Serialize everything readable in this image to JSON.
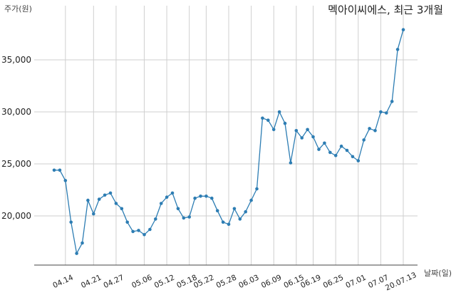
{
  "chart_data": {
    "type": "line",
    "title": "멕아이씨에스, 최근 3개월",
    "ylabel": "주가(원)",
    "xlabel": "날짜(일)",
    "ylim": [
      15000,
      39000
    ],
    "y_ticks": [
      20000,
      25000,
      30000,
      35000
    ],
    "y_tick_labels": [
      "20,000",
      "25,000",
      "30,000",
      "35,000"
    ],
    "grid": true,
    "x_tick_labels": [
      "04.14",
      "04.21",
      "04.27",
      "05.06",
      "05.12",
      "05.18",
      "05.22",
      "05.28",
      "06.03",
      "06.09",
      "06.15",
      "06.19",
      "06.25",
      "07.01",
      "07.07",
      "20.07.13"
    ],
    "x_tick_index": [
      2,
      7,
      11,
      16,
      20,
      24,
      27,
      31,
      35,
      39,
      43,
      46,
      50,
      54,
      58,
      62
    ],
    "series": [
      {
        "values": [
          24400,
          24400,
          23400,
          19400,
          16400,
          17400,
          21500,
          20200,
          21600,
          22000,
          22200,
          21200,
          20700,
          19400,
          18500,
          18600,
          18200,
          18700,
          19700,
          21200,
          21800,
          22200,
          20700,
          19800,
          19900,
          21700,
          21900,
          21900,
          21700,
          20500,
          19400,
          19200,
          20700,
          19700,
          20400,
          21500,
          22600,
          29400,
          29200,
          28300,
          30000,
          28900,
          25100,
          28200,
          27500,
          28300,
          27600,
          26400,
          27000,
          26100,
          25800,
          26700,
          26300,
          25700,
          25300,
          27300,
          28400,
          28200,
          30000,
          29900,
          31000,
          36000,
          37900
        ],
        "color": "#2d7db3"
      }
    ]
  }
}
